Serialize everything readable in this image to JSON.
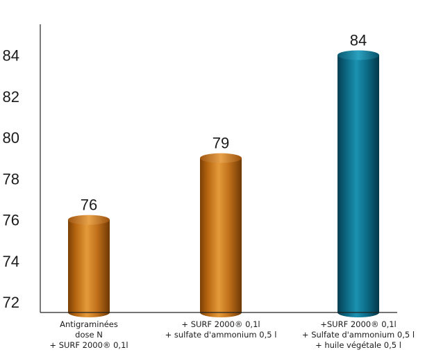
{
  "chart_data": {
    "type": "bar",
    "title": "",
    "xlabel": "",
    "ylabel": "",
    "ylim": [
      71.5,
      85.5
    ],
    "yticks": [
      72,
      74,
      76,
      78,
      80,
      82,
      84
    ],
    "grid": false,
    "categories": [
      [
        "Antigraminées",
        "dose N",
        "+ SURF 2000® 0,1l"
      ],
      [
        "+ SURF 2000® 0,1l",
        "+ sulfate d'ammonium 0,5 l"
      ],
      [
        "+SURF 2000® 0,1l",
        "+ Sulfate d'ammonium 0,5 l",
        "+ huile végétale 0,5 l"
      ]
    ],
    "values": [
      76,
      79,
      84
    ],
    "data_labels": [
      "76",
      "79",
      "84"
    ],
    "bar_colors": [
      "#c8781a",
      "#c8781a",
      "#0f7b96"
    ],
    "bar_shape": "cylinder"
  }
}
